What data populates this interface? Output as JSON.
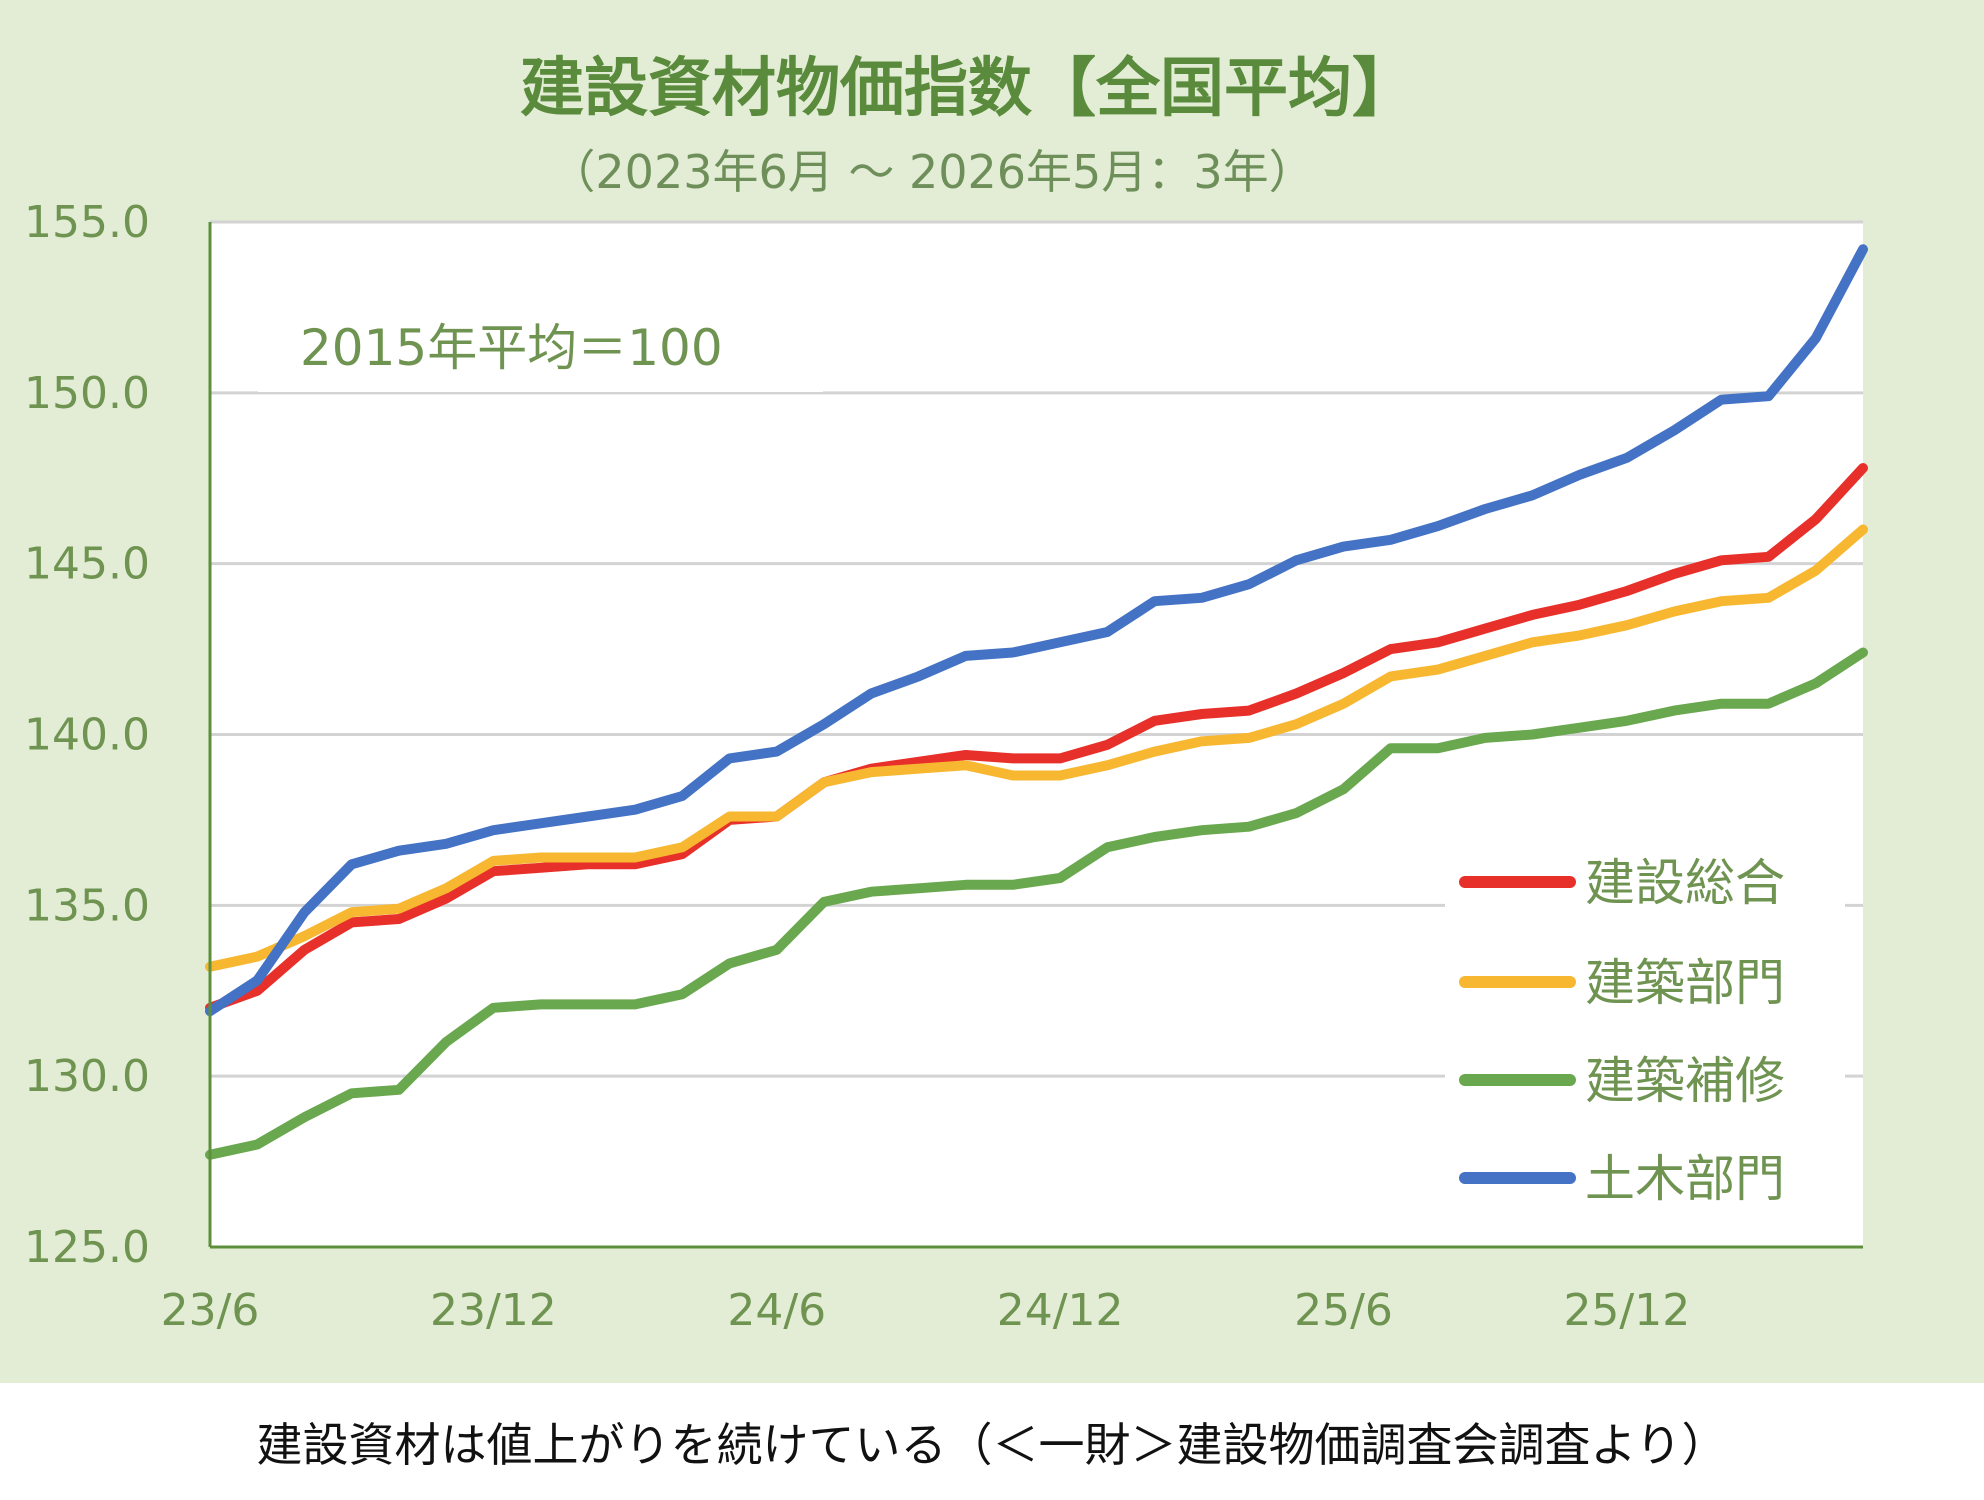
{
  "chart_data": {
    "type": "line",
    "title": "建設資材物価指数【全国平均】",
    "subtitle": "（2023年6月 ～ 2026年5月：3年）",
    "annotation": "2015年平均＝100",
    "ylim": [
      125.0,
      155.0
    ],
    "y_ticks": [
      "125.0",
      "130.0",
      "135.0",
      "140.0",
      "145.0",
      "150.0",
      "155.0"
    ],
    "x_ticks": [
      "23/6",
      "23/12",
      "24/6",
      "24/12",
      "25/6",
      "25/12"
    ],
    "x_tick_index": [
      0,
      6,
      12,
      18,
      24,
      30
    ],
    "grid": true,
    "legend_position": "right",
    "series": [
      {
        "name": "建設総合",
        "color": "#e8302a",
        "values": [
          132.0,
          132.5,
          133.7,
          134.5,
          134.6,
          135.2,
          136.0,
          136.1,
          136.2,
          136.2,
          136.5,
          137.5,
          137.6,
          138.6,
          139.0,
          139.2,
          139.4,
          139.3,
          139.3,
          139.7,
          140.4,
          140.6,
          140.7,
          141.2,
          141.8,
          142.5,
          142.7,
          143.1,
          143.5,
          143.8,
          144.2,
          144.7,
          145.1,
          145.2,
          146.3,
          147.8
        ]
      },
      {
        "name": "建築部門",
        "color": "#f7b731",
        "values": [
          133.2,
          133.5,
          134.1,
          134.8,
          134.9,
          135.5,
          136.3,
          136.4,
          136.4,
          136.4,
          136.7,
          137.6,
          137.6,
          138.6,
          138.9,
          139.0,
          139.1,
          138.8,
          138.8,
          139.1,
          139.5,
          139.8,
          139.9,
          140.3,
          140.9,
          141.7,
          141.9,
          142.3,
          142.7,
          142.9,
          143.2,
          143.6,
          143.9,
          144.0,
          144.8,
          146.0
        ]
      },
      {
        "name": "建築補修",
        "color": "#6aa84f",
        "values": [
          127.7,
          128.0,
          128.8,
          129.5,
          129.6,
          131.0,
          132.0,
          132.1,
          132.1,
          132.1,
          132.4,
          133.3,
          133.7,
          135.1,
          135.4,
          135.5,
          135.6,
          135.6,
          135.8,
          136.7,
          137.0,
          137.2,
          137.3,
          137.7,
          138.4,
          139.6,
          139.6,
          139.9,
          140.0,
          140.2,
          140.4,
          140.7,
          140.9,
          140.9,
          141.5,
          142.4
        ]
      },
      {
        "name": "土木部門",
        "color": "#4472c4",
        "values": [
          131.9,
          132.8,
          134.8,
          136.2,
          136.6,
          136.8,
          137.2,
          137.4,
          137.6,
          137.8,
          138.2,
          139.3,
          139.5,
          140.3,
          141.2,
          141.7,
          142.3,
          142.4,
          142.7,
          143.0,
          143.9,
          144.0,
          144.4,
          145.1,
          145.5,
          145.7,
          146.1,
          146.6,
          147.0,
          147.6,
          148.1,
          148.9,
          149.8,
          149.9,
          151.6,
          154.2
        ]
      }
    ]
  },
  "caption": "建設資材は値上がりを続けている（＜一財＞建設物価調査会調査より）"
}
